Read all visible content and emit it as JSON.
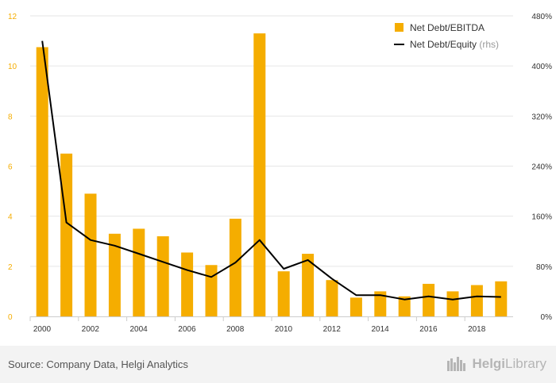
{
  "chart_data": {
    "type": "bar",
    "categories": [
      "2000",
      "2001",
      "2002",
      "2003",
      "2004",
      "2005",
      "2006",
      "2007",
      "2008",
      "2009",
      "2010",
      "2011",
      "2012",
      "2013",
      "2014",
      "2015",
      "2016",
      "2017",
      "2018",
      "2019"
    ],
    "series": [
      {
        "name": "Net Debt/EBITDA",
        "type": "bar",
        "axis": "left",
        "color": "#f5ad00",
        "values": [
          10.75,
          6.5,
          4.9,
          3.3,
          3.5,
          3.2,
          2.55,
          2.05,
          3.9,
          11.3,
          1.8,
          2.5,
          1.45,
          0.75,
          1.0,
          0.8,
          1.3,
          1.0,
          1.25,
          1.4
        ]
      },
      {
        "name": "Net Debt/Equity",
        "type": "line",
        "axis": "right",
        "color": "#000000",
        "values": [
          440,
          150,
          122,
          113,
          100,
          87,
          74,
          63,
          86,
          122,
          76,
          90,
          60,
          34,
          34,
          27,
          32,
          27,
          32,
          31
        ]
      }
    ],
    "legend": {
      "items": [
        {
          "label": "Net Debt/EBITDA",
          "marker": "square",
          "color": "#f5ad00"
        },
        {
          "label": "Net Debt/Equity",
          "suffix": "(rhs)",
          "marker": "line",
          "color": "#000000"
        }
      ],
      "position": "top-right"
    },
    "y_left": {
      "ylim": [
        0,
        12
      ],
      "ticks": [
        "0",
        "2",
        "4",
        "6",
        "8",
        "10",
        "12"
      ],
      "tick_color": "#f5ad00"
    },
    "y_right": {
      "ylim": [
        0,
        480
      ],
      "ticks": [
        "0%",
        "80%",
        "160%",
        "240%",
        "320%",
        "400%",
        "480%"
      ]
    },
    "x_ticks": [
      "2000",
      "2002",
      "2004",
      "2006",
      "2008",
      "2010",
      "2012",
      "2014",
      "2016",
      "2018"
    ],
    "grid": true
  },
  "footer": {
    "source": "Source: Company Data, Helgi Analytics",
    "brand_prefix": "Helgi",
    "brand_suffix": "Library"
  }
}
